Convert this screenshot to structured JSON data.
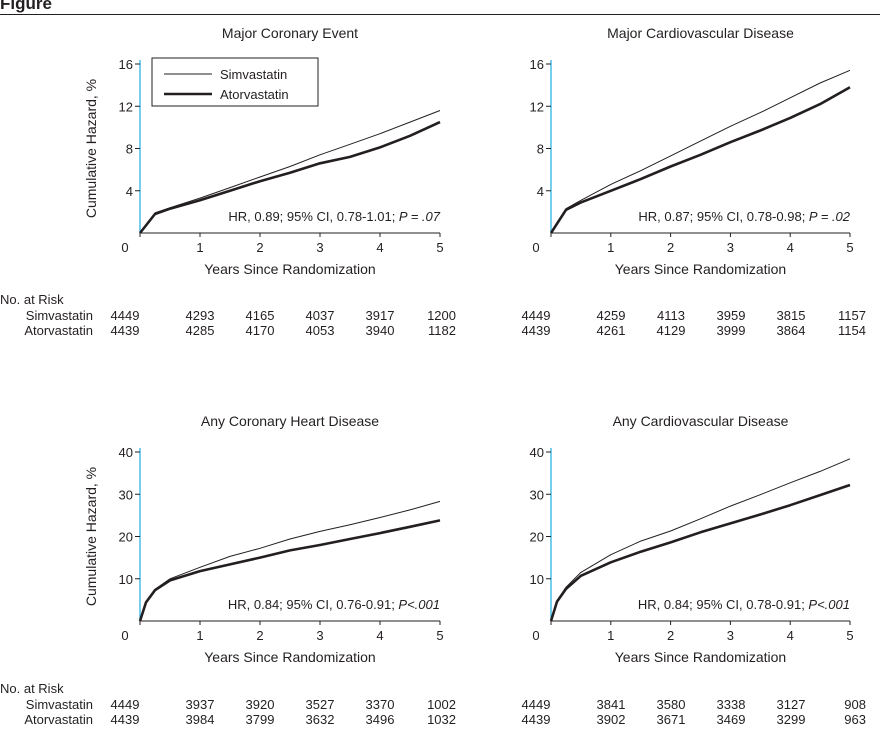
{
  "figure_label": "Figure",
  "colors": {
    "curve": "#231f20",
    "axis_accent": "#3fb8e8"
  },
  "risk_header": "No. at Risk",
  "chart_data": [
    {
      "type": "line",
      "title": "Major Coronary Event",
      "xlabel": "Years Since Randomization",
      "ylabel": "Cumulative Hazard, %",
      "xlim": [
        0,
        5
      ],
      "ylim": [
        0,
        16
      ],
      "xticks": [
        "0",
        "1",
        "2",
        "3",
        "4",
        "5"
      ],
      "yticks": [
        "4",
        "8",
        "12",
        "16"
      ],
      "legend": {
        "placement": "top-left",
        "entries": [
          "Simvastatin",
          "Atorvastatin"
        ]
      },
      "annotation": "HR, 0.89; 95% CI, 0.78-1.01; ",
      "p_value": "P = .07",
      "series": [
        {
          "name": "Simvastatin",
          "x": [
            0,
            0.25,
            0.5,
            1,
            1.5,
            2,
            2.5,
            3,
            3.5,
            4,
            4.5,
            5
          ],
          "y": [
            0,
            1.9,
            2.4,
            3.3,
            4.3,
            5.3,
            6.3,
            7.4,
            8.4,
            9.4,
            10.5,
            11.6
          ]
        },
        {
          "name": "Atorvastatin",
          "x": [
            0,
            0.25,
            0.5,
            1,
            1.5,
            2,
            2.5,
            3,
            3.5,
            4,
            4.5,
            5
          ],
          "y": [
            0,
            1.8,
            2.3,
            3.1,
            4.0,
            4.9,
            5.7,
            6.6,
            7.2,
            8.1,
            9.2,
            10.5
          ]
        }
      ],
      "at_risk": [
        {
          "name": "Simvastatin",
          "values": [
            "4449",
            "4293",
            "4165",
            "4037",
            "3917",
            "1200"
          ]
        },
        {
          "name": "Atorvastatin",
          "values": [
            "4439",
            "4285",
            "4170",
            "4053",
            "3940",
            "1182"
          ]
        }
      ]
    },
    {
      "type": "line",
      "title": "Major Cardiovascular Disease",
      "xlabel": "Years Since Randomization",
      "ylabel": "",
      "xlim": [
        0,
        5
      ],
      "ylim": [
        0,
        16
      ],
      "xticks": [
        "0",
        "1",
        "2",
        "3",
        "4",
        "5"
      ],
      "yticks": [
        "4",
        "8",
        "12",
        "16"
      ],
      "annotation": "HR, 0.87; 95% CI, 0.78-0.98; ",
      "p_value": "P = .02",
      "series": [
        {
          "name": "Simvastatin",
          "x": [
            0,
            0.25,
            0.5,
            1,
            1.5,
            2,
            2.5,
            3,
            3.5,
            4,
            4.5,
            5
          ],
          "y": [
            0,
            2.3,
            3.1,
            4.6,
            5.9,
            7.3,
            8.7,
            10.1,
            11.4,
            12.8,
            14.2,
            15.4
          ]
        },
        {
          "name": "Atorvastatin",
          "x": [
            0,
            0.25,
            0.5,
            1,
            1.5,
            2,
            2.5,
            3,
            3.5,
            4,
            4.5,
            5
          ],
          "y": [
            0,
            2.2,
            2.9,
            4.0,
            5.1,
            6.3,
            7.4,
            8.6,
            9.7,
            10.9,
            12.2,
            13.8
          ]
        }
      ],
      "at_risk": [
        {
          "name": "Simvastatin",
          "values": [
            "4449",
            "4259",
            "4113",
            "3959",
            "3815",
            "1157"
          ]
        },
        {
          "name": "Atorvastatin",
          "values": [
            "4439",
            "4261",
            "4129",
            "3999",
            "3864",
            "1154"
          ]
        }
      ]
    },
    {
      "type": "line",
      "title": "Any Coronary Heart Disease",
      "xlabel": "Years Since Randomization",
      "ylabel": "Cumulative Hazard, %",
      "xlim": [
        0,
        5
      ],
      "ylim": [
        0,
        40
      ],
      "xticks": [
        "0",
        "1",
        "2",
        "3",
        "4",
        "5"
      ],
      "yticks": [
        "10",
        "20",
        "30",
        "40"
      ],
      "annotation": "HR, 0.84; 95% CI, 0.76-0.91; ",
      "p_value": "P<.001",
      "series": [
        {
          "name": "Simvastatin",
          "x": [
            0,
            0.1,
            0.25,
            0.5,
            1,
            1.5,
            2,
            2.5,
            3,
            3.5,
            4,
            4.5,
            5
          ],
          "y": [
            0,
            4.5,
            7.5,
            10,
            12.7,
            15.3,
            17.2,
            19.4,
            21.2,
            22.8,
            24.5,
            26.3,
            28.3
          ]
        },
        {
          "name": "Atorvastatin",
          "x": [
            0,
            0.1,
            0.25,
            0.5,
            1,
            1.5,
            2,
            2.5,
            3,
            3.5,
            4,
            4.5,
            5
          ],
          "y": [
            0,
            4.4,
            7.3,
            9.6,
            11.8,
            13.4,
            15,
            16.7,
            18,
            19.4,
            20.8,
            22.3,
            23.8
          ]
        }
      ],
      "at_risk": [
        {
          "name": "Simvastatin",
          "values": [
            "4449",
            "3937",
            "3920",
            "3527",
            "3370",
            "1002"
          ]
        },
        {
          "name": "Atorvastatin",
          "values": [
            "4439",
            "3984",
            "3799",
            "3632",
            "3496",
            "1032"
          ]
        }
      ]
    },
    {
      "type": "line",
      "title": "Any Cardiovascular Disease",
      "xlabel": "Years Since Randomization",
      "ylabel": "",
      "xlim": [
        0,
        5
      ],
      "ylim": [
        0,
        40
      ],
      "xticks": [
        "0",
        "1",
        "2",
        "3",
        "4",
        "5"
      ],
      "yticks": [
        "10",
        "20",
        "30",
        "40"
      ],
      "annotation": "HR, 0.84; 95% CI, 0.78-0.91; ",
      "p_value": "P<.001",
      "series": [
        {
          "name": "Simvastatin",
          "x": [
            0,
            0.1,
            0.25,
            0.5,
            1,
            1.5,
            2,
            2.5,
            3,
            3.5,
            4,
            4.5,
            5
          ],
          "y": [
            0,
            4.8,
            8,
            11.5,
            15.7,
            18.9,
            21.3,
            24.2,
            27.2,
            29.9,
            32.7,
            35.4,
            38.4
          ]
        },
        {
          "name": "Atorvastatin",
          "x": [
            0,
            0.1,
            0.25,
            0.5,
            1,
            1.5,
            2,
            2.5,
            3,
            3.5,
            4,
            4.5,
            5
          ],
          "y": [
            0,
            4.6,
            7.6,
            10.7,
            13.9,
            16.4,
            18.6,
            21,
            23.1,
            25.2,
            27.4,
            29.8,
            32.2
          ]
        }
      ],
      "at_risk": [
        {
          "name": "Simvastatin",
          "values": [
            "4449",
            "3841",
            "3580",
            "3338",
            "3127",
            "908"
          ]
        },
        {
          "name": "Atorvastatin",
          "values": [
            "4439",
            "3902",
            "3671",
            "3469",
            "3299",
            "963"
          ]
        }
      ]
    }
  ]
}
